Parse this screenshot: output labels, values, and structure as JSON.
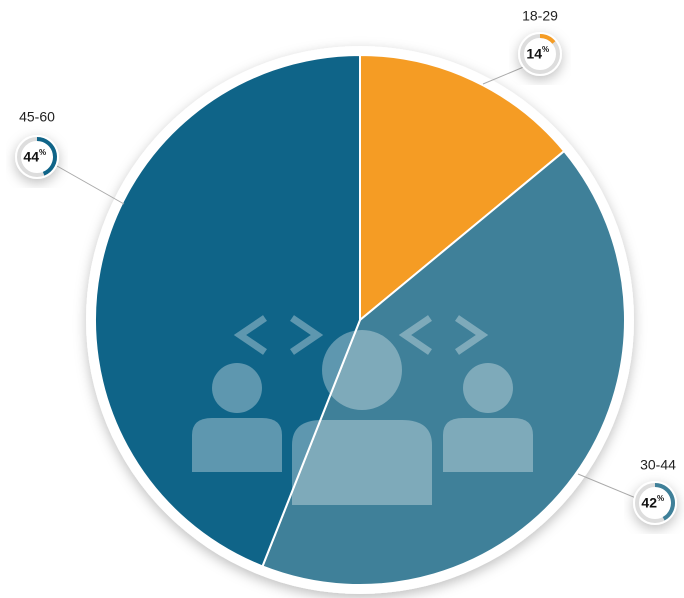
{
  "chart_data": {
    "type": "pie",
    "categories": [
      "18-29",
      "30-44",
      "45-60"
    ],
    "values": [
      14,
      42,
      44
    ],
    "unit": "%",
    "colors": [
      "#f59c24",
      "#3f8099",
      "#0f6488"
    ]
  }
}
